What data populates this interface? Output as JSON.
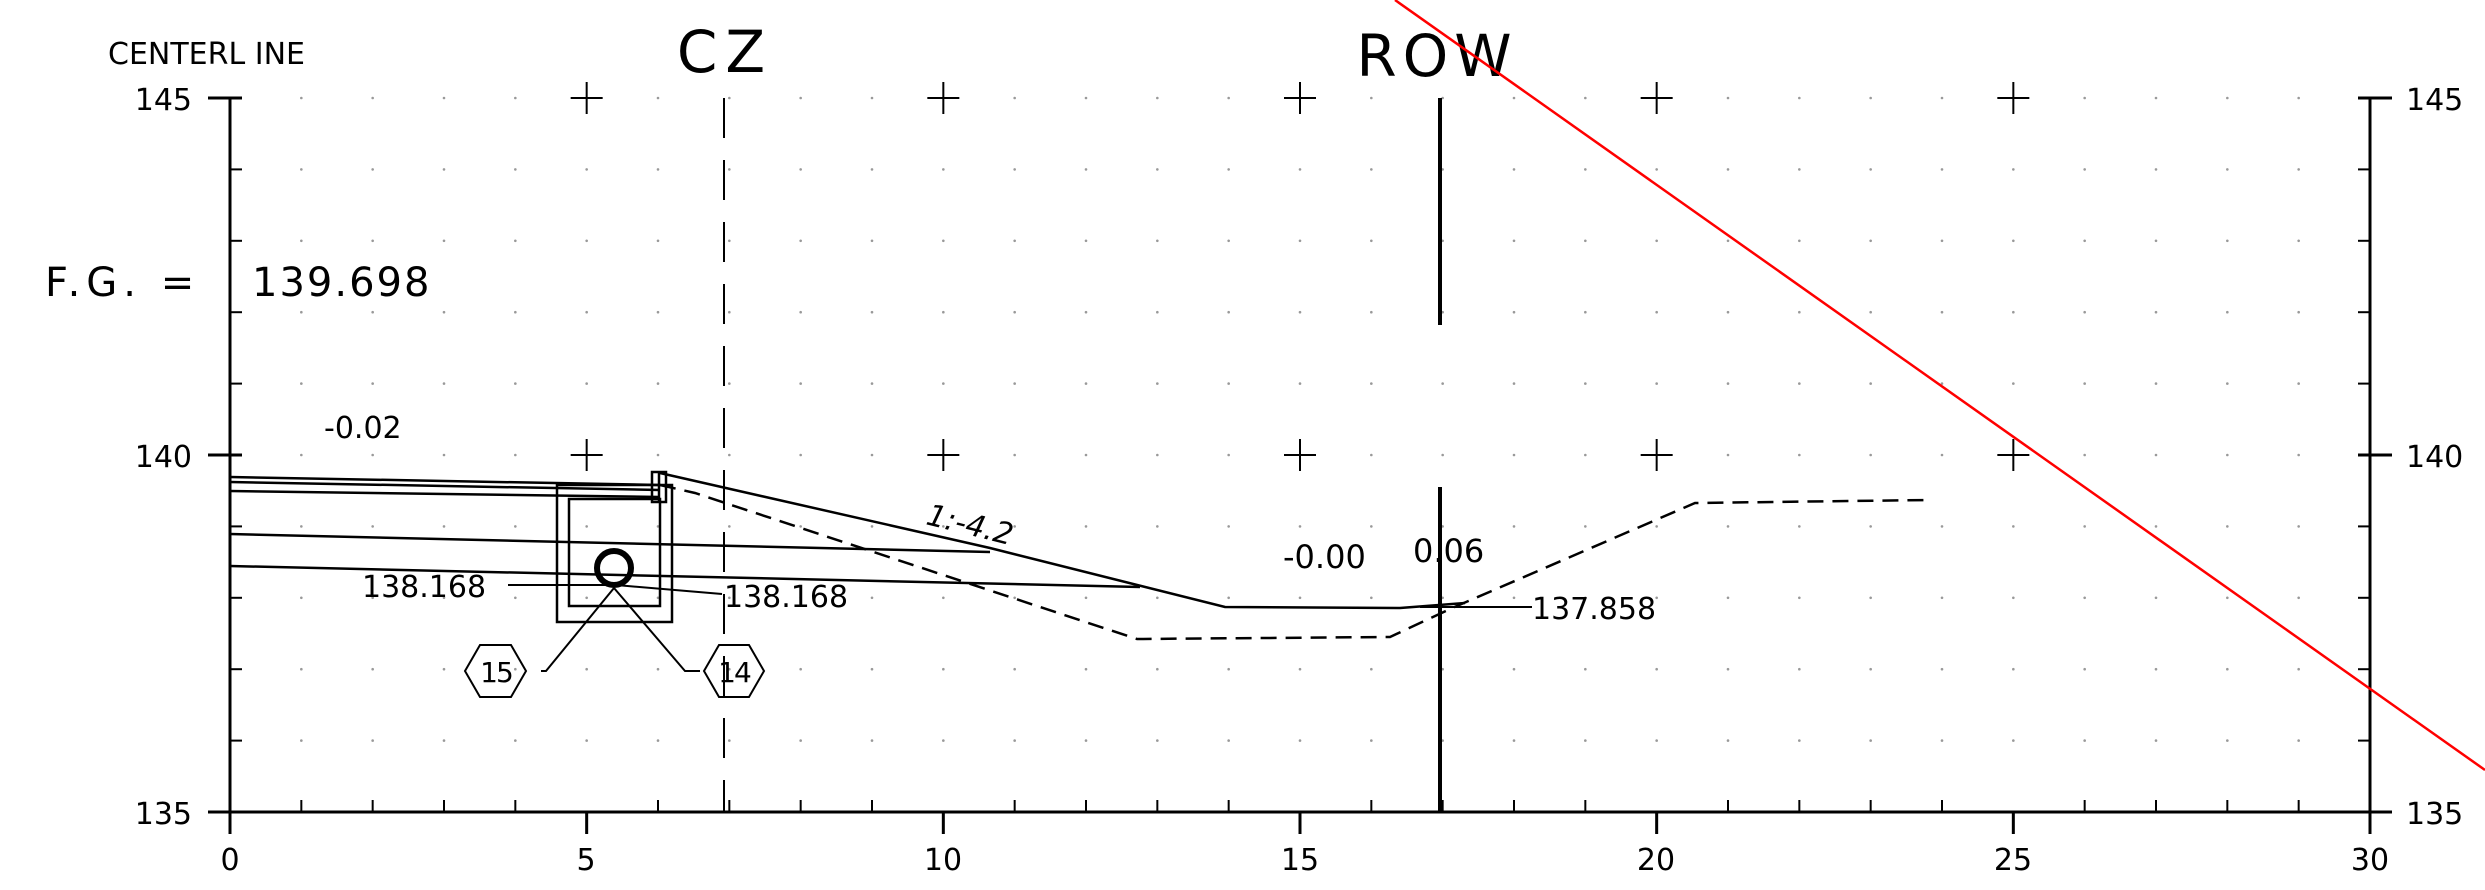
{
  "header": {
    "centerline_label": "CENTERL INE",
    "cz_label": "CZ",
    "row_label": "ROW"
  },
  "finished_grade": {
    "label": "F.G. =",
    "value": "139.698"
  },
  "annotations": {
    "slope_left": "-0.02",
    "slope_ratio": "1:-4.2",
    "slope_mid": "-0.00",
    "slope_right": "0.06",
    "elev_left": "138.168",
    "elev_right": "138.168",
    "elev_far": "137.858"
  },
  "pipes": [
    {
      "id": "15"
    },
    {
      "id": "14"
    }
  ],
  "axes": {
    "x_ticks": [
      "0",
      "5",
      "10",
      "15",
      "20",
      "25",
      "30"
    ],
    "y_ticks": [
      "145",
      "140",
      "135"
    ],
    "x_range": [
      0,
      30
    ],
    "y_range": [
      135,
      145
    ]
  },
  "colors": {
    "ink": "#000000",
    "reference_line": "#ff0000",
    "background": "#ffffff"
  }
}
